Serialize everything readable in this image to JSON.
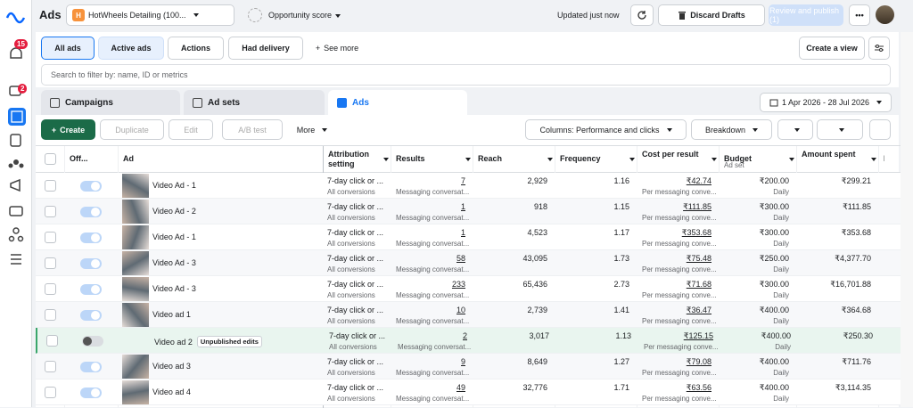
{
  "nav": {
    "notification_count": "15",
    "ads_badge": "2"
  },
  "header": {
    "title": "Ads",
    "account_initial": "H",
    "account": "HotWheels Detailing (100...",
    "opportunity": "Opportunity score",
    "updated": "Updated just now",
    "discard": "Discard Drafts",
    "review": "Review and publish (1)"
  },
  "filters": {
    "buttons": [
      "All ads",
      "Active ads",
      "Actions",
      "Had delivery"
    ],
    "see_more": "See more",
    "create_view": "Create a view",
    "search_placeholder": "Search to filter by: name, ID or metrics"
  },
  "tabs": [
    "Campaigns",
    "Ad sets",
    "Ads"
  ],
  "date_range": "1 Apr 2026 - 28 Jul 2026",
  "toolbar": {
    "create": "Create",
    "duplicate": "Duplicate",
    "edit": "Edit",
    "ab_test": "A/B test",
    "more": "More",
    "columns": "Columns: Performance and clicks",
    "breakdown": "Breakdown"
  },
  "table": {
    "columns": [
      "Off...",
      "Ad",
      "Attribution setting",
      "Results",
      "Reach",
      "Frequency",
      "Cost per result",
      "Budget",
      "Amount spent",
      "En"
    ],
    "budget_sub": "Ad set",
    "rows": [
      {
        "on": true,
        "thumbnail": true,
        "name": "Video Ad - 1",
        "attribution": "7-day click or ...",
        "attribution_sub": "All conversions",
        "results": "7",
        "results_sub": "Messaging conversat...",
        "reach": "2,929",
        "frequency": "1.16",
        "cost": "₹42.74",
        "cost_sub": "Per messaging conve...",
        "budget": "₹200.00",
        "budget_sub": "Daily",
        "spent": "₹299.21"
      },
      {
        "on": true,
        "thumbnail": true,
        "name": "Video Ad - 2",
        "attribution": "7-day click or ...",
        "attribution_sub": "All conversions",
        "results": "1",
        "results_sub": "Messaging conversat...",
        "reach": "918",
        "frequency": "1.15",
        "cost": "₹111.85",
        "cost_sub": "Per messaging conve...",
        "budget": "₹300.00",
        "budget_sub": "Daily",
        "spent": "₹111.85"
      },
      {
        "on": true,
        "thumbnail": true,
        "name": "Video Ad - 1",
        "attribution": "7-day click or ...",
        "attribution_sub": "All conversions",
        "results": "1",
        "results_sub": "Messaging conversat...",
        "reach": "4,523",
        "frequency": "1.17",
        "cost": "₹353.68",
        "cost_sub": "Per messaging conve...",
        "budget": "₹300.00",
        "budget_sub": "Daily",
        "spent": "₹353.68"
      },
      {
        "on": true,
        "thumbnail": true,
        "name": "Video Ad - 3",
        "attribution": "7-day click or ...",
        "attribution_sub": "All conversions",
        "results": "58",
        "results_sub": "Messaging conversat...",
        "reach": "43,095",
        "frequency": "1.73",
        "cost": "₹75.48",
        "cost_sub": "Per messaging conve...",
        "budget": "₹250.00",
        "budget_sub": "Daily",
        "spent": "₹4,377.70"
      },
      {
        "on": true,
        "thumbnail": true,
        "name": "Video Ad - 3",
        "attribution": "7-day click or ...",
        "attribution_sub": "All conversions",
        "results": "233",
        "results_sub": "Messaging conversat...",
        "reach": "65,436",
        "frequency": "2.73",
        "cost": "₹71.68",
        "cost_sub": "Per messaging conve...",
        "budget": "₹300.00",
        "budget_sub": "Daily",
        "spent": "₹16,701.88"
      },
      {
        "on": true,
        "thumbnail": true,
        "name": "Video ad 1",
        "attribution": "7-day click or ...",
        "attribution_sub": "All conversions",
        "results": "10",
        "results_sub": "Messaging conversat...",
        "reach": "2,739",
        "frequency": "1.41",
        "cost": "₹36.47",
        "cost_sub": "Per messaging conve...",
        "budget": "₹400.00",
        "budget_sub": "Daily",
        "spent": "₹364.68"
      },
      {
        "on": false,
        "thumbnail": false,
        "name": "Video ad 2",
        "badge": "Unpublished edits",
        "attribution": "7-day click or ...",
        "attribution_sub": "All conversions",
        "results": "2",
        "results_sub": "Messaging conversat...",
        "reach": "3,017",
        "frequency": "1.13",
        "cost": "₹125.15",
        "cost_sub": "Per messaging conve...",
        "budget": "₹400.00",
        "budget_sub": "Daily",
        "spent": "₹250.30"
      },
      {
        "on": true,
        "thumbnail": true,
        "name": "Video ad 3",
        "attribution": "7-day click or ...",
        "attribution_sub": "All conversions",
        "results": "9",
        "results_sub": "Messaging conversat...",
        "reach": "8,649",
        "frequency": "1.27",
        "cost": "₹79.08",
        "cost_sub": "Per messaging conve...",
        "budget": "₹400.00",
        "budget_sub": "Daily",
        "spent": "₹711.76"
      },
      {
        "on": true,
        "thumbnail": true,
        "name": "Video ad 4",
        "attribution": "7-day click or ...",
        "attribution_sub": "All conversions",
        "results": "49",
        "results_sub": "Messaging conversat...",
        "reach": "32,776",
        "frequency": "1.71",
        "cost": "₹63.56",
        "cost_sub": "Per messaging conve...",
        "budget": "₹400.00",
        "budget_sub": "Daily",
        "spent": "₹3,114.35"
      }
    ]
  }
}
